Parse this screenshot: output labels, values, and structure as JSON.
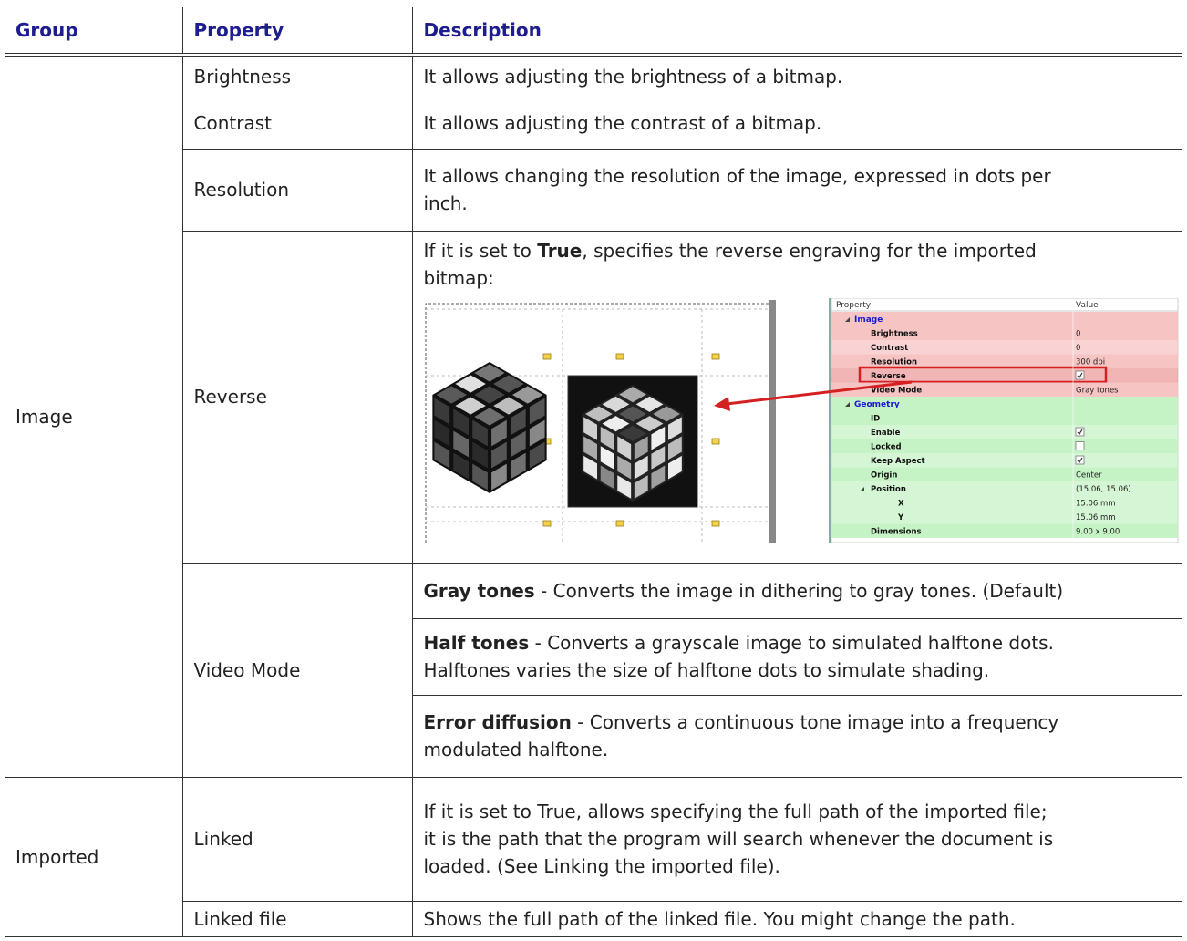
{
  "header": {
    "group": "Group",
    "property": "Property",
    "description": "Description"
  },
  "groups": [
    {
      "name": "Image",
      "properties": [
        {
          "name": "Brightness",
          "descriptions": [
            [
              [
                {
                  "text": "It allows adjusting the brightness of a bitmap."
                }
              ]
            ]
          ]
        },
        {
          "name": "Contrast",
          "descriptions": [
            [
              [
                {
                  "text": "It allows adjusting the contrast of a bitmap."
                }
              ]
            ]
          ]
        },
        {
          "name": "Resolution",
          "descriptions": [
            [
              [
                {
                  "text": "It allows changing the resolution of the image, expressed in dots per"
                }
              ],
              [
                {
                  "text": "inch."
                }
              ]
            ]
          ]
        },
        {
          "name": "Reverse",
          "descriptions": [
            [
              [
                {
                  "text": "If it is set to "
                },
                {
                  "text": "True",
                  "bold": true
                },
                {
                  "text": ", specifies the reverse engraving for the imported"
                }
              ],
              [
                {
                  "text": "bitmap:"
                }
              ]
            ]
          ],
          "figure": {
            "grid": {
              "header": [
                "Property",
                "Value"
              ],
              "categories": [
                {
                  "name": "Image",
                  "color": "#f7c4c4",
                  "properties": [
                    {
                      "name": "Brightness",
                      "value": "0"
                    },
                    {
                      "name": "Contrast",
                      "value": "0"
                    },
                    {
                      "name": "Resolution",
                      "value": "300 dpi"
                    },
                    {
                      "name": "Reverse",
                      "checked": true,
                      "highlighted": true
                    },
                    {
                      "name": "Video Mode",
                      "value": "Gray tones"
                    }
                  ]
                },
                {
                  "name": "Geometry",
                  "color": "#c6f3c6",
                  "properties": [
                    {
                      "name": "ID"
                    },
                    {
                      "name": "Enable",
                      "checked": true
                    },
                    {
                      "name": "Locked",
                      "checked": false
                    },
                    {
                      "name": "Keep Aspect",
                      "checked": true
                    },
                    {
                      "name": "Origin",
                      "value": "Center"
                    },
                    {
                      "name": "Position",
                      "value": "(15.06, 15.06)",
                      "children": [
                        {
                          "name": "X",
                          "value": "15.06 mm"
                        },
                        {
                          "name": "Y",
                          "value": "15.06 mm"
                        }
                      ]
                    },
                    {
                      "name": "Dimensions",
                      "value": "9.00 x 9.00"
                    }
                  ]
                }
              ]
            }
          }
        },
        {
          "name": "Video Mode",
          "descriptions": [
            [
              [
                {
                  "text": "Gray tones",
                  "bold": true
                },
                {
                  "text": " - Converts the image in dithering to gray tones. (Default)"
                }
              ]
            ],
            [
              [
                {
                  "text": "Half tones",
                  "bold": true
                },
                {
                  "text": " - Converts a grayscale image to simulated halftone dots."
                }
              ],
              [
                {
                  "text": "Halftones varies the size of halftone dots to simulate shading."
                }
              ]
            ],
            [
              [
                {
                  "text": "Error diffusion",
                  "bold": true
                },
                {
                  "text": " - Converts a continuous tone image into a frequency"
                }
              ],
              [
                {
                  "text": "modulated halftone."
                }
              ]
            ]
          ]
        }
      ]
    },
    {
      "name": "Imported",
      "properties": [
        {
          "name": "Linked",
          "descriptions": [
            [
              [
                {
                  "text": "If it is set to True, allows specifying the full path of the imported file;"
                }
              ],
              [
                {
                  "text": "it is the path that the program will search whenever the document is"
                }
              ],
              [
                {
                  "text": "loaded. (See Linking the imported file)."
                }
              ]
            ]
          ]
        },
        {
          "name": "Linked file",
          "descriptions": [
            [
              [
                {
                  "text": "Shows the full path of the linked file. You might change the path."
                }
              ]
            ]
          ]
        }
      ]
    }
  ]
}
